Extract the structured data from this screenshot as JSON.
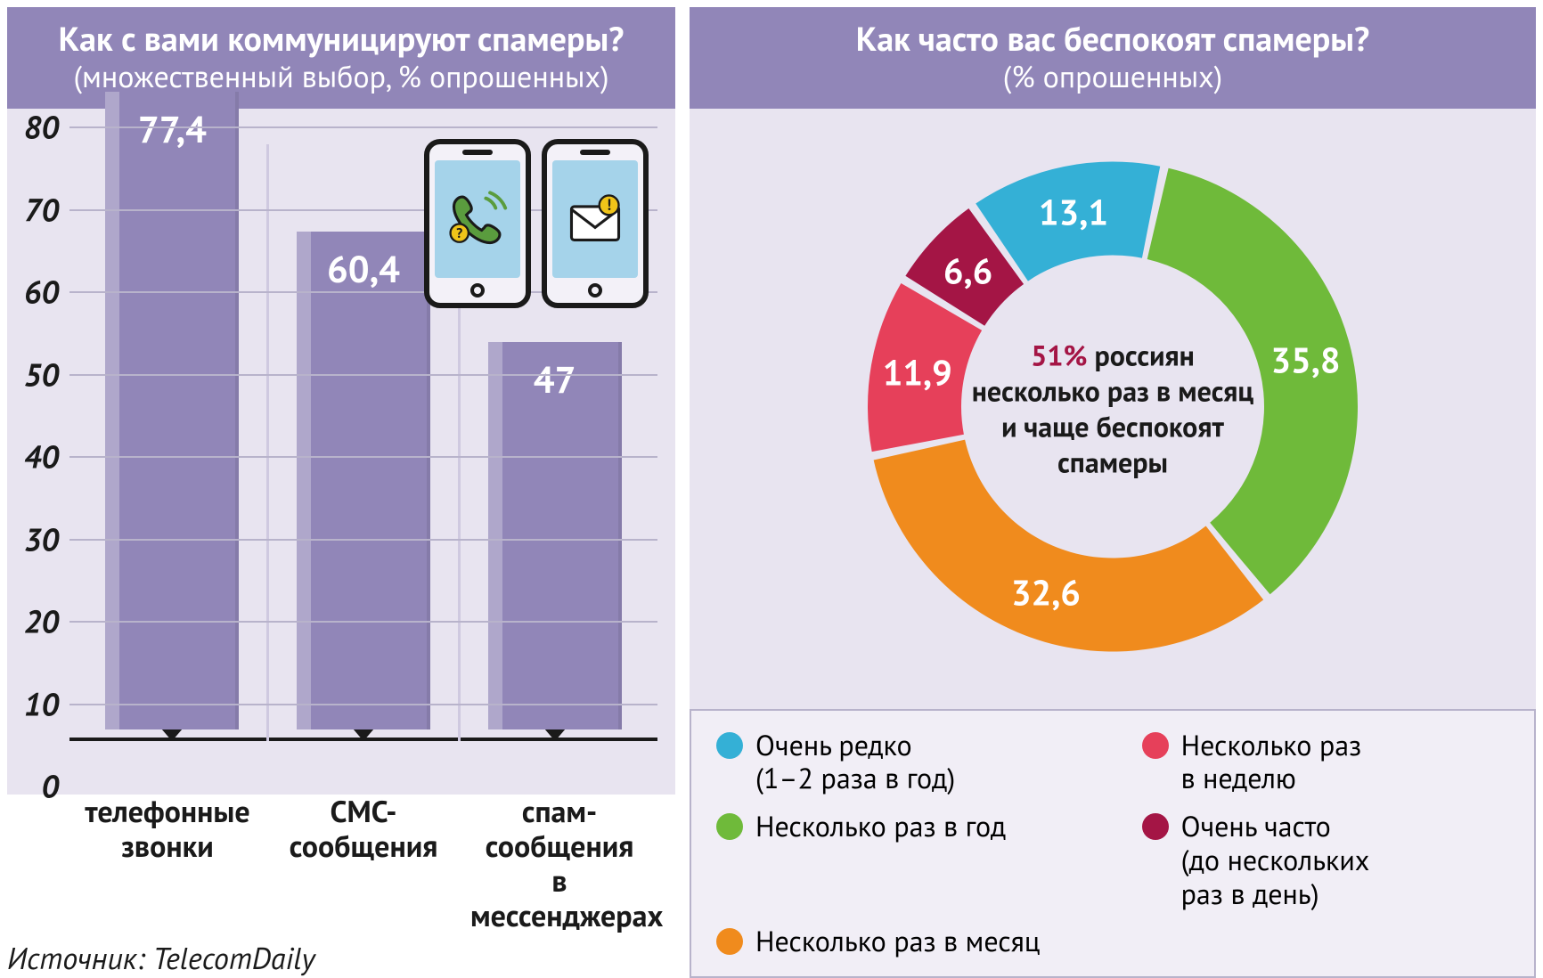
{
  "left": {
    "title": "Как с вами коммуницируют спамеры?",
    "subtitle": "(множественный выбор, % опрошенных)",
    "source": "Источник: TelecomDaily",
    "bar_chart": {
      "type": "bar",
      "ylim": [
        0,
        80
      ],
      "ytick_step": 10,
      "bar_color": "#9186b8",
      "bar_highlight": "rgba(255,255,255,0.28)",
      "grid_color": "#b8b3cb",
      "baseline_color": "#1a1a1a",
      "background_color": "#e8e4f0",
      "value_color": "#ffffff",
      "value_fontsize": 42,
      "label_fontsize": 34,
      "categories": [
        {
          "label": "телефонные\nзвонки",
          "value": 77.4,
          "value_text": "77,4"
        },
        {
          "label": "СМС-\nсообщения",
          "value": 60.4,
          "value_text": "60,4"
        },
        {
          "label": "спам-\nсообщения\nв мессенджерах",
          "value": 47,
          "value_text": "47"
        }
      ]
    },
    "icons": {
      "phone_outline": "#1a1a1a",
      "screen_color": "#a5d3ea",
      "call_icon_color": "#5a9c3e",
      "mail_icon_color": "#1a1a1a",
      "warn_badge_bg": "#f0c419",
      "warn_badge_fg": "#1a1a1a"
    }
  },
  "right": {
    "title": "Как часто вас беспокоят спамеры?",
    "subtitle": "(% опрошенных)",
    "donut": {
      "type": "pie",
      "background_color": "#e8e4f0",
      "inner_radius": 170,
      "outer_radius": 275,
      "gap_color": "#ffffff",
      "gap_deg": 2,
      "center_highlight": "51%",
      "center_text": "россиян несколько раз в месяц и чаще беспокоят спамеры",
      "highlight_color": "#a41545",
      "label_color": "#ffffff",
      "label_fontsize": 40,
      "start_angle": -35,
      "slices": [
        {
          "label": "Очень редко (1–2 раза в год)",
          "value": 13.1,
          "value_text": "13,1",
          "color": "#34b0d6"
        },
        {
          "label": "Несколько раз в год",
          "value": 35.8,
          "value_text": "35,8",
          "color": "#6fba3a"
        },
        {
          "label": "Несколько раз в месяц",
          "value": 32.6,
          "value_text": "32,6",
          "color": "#f08b1d"
        },
        {
          "label": "Несколько раз в неделю",
          "value": 11.9,
          "value_text": "11,9",
          "color": "#e6405a"
        },
        {
          "label": "Очень часто (до нескольких раз в день)",
          "value": 6.6,
          "value_text": "6,6",
          "color": "#a41545"
        }
      ]
    },
    "legend": {
      "background": "#f1eef6",
      "border_color": "#b8b3cb",
      "items": [
        {
          "color": "#34b0d6",
          "text": "Очень редко\n(1–2 раза в год)"
        },
        {
          "color": "#e6405a",
          "text": "Несколько раз\nв неделю"
        },
        {
          "color": "#6fba3a",
          "text": "Несколько раз в год"
        },
        {
          "color": "#a41545",
          "text": "Очень часто\n(до нескольких\nраз в день)"
        },
        {
          "color": "#f08b1d",
          "text": "Несколько раз в месяц"
        }
      ]
    }
  }
}
